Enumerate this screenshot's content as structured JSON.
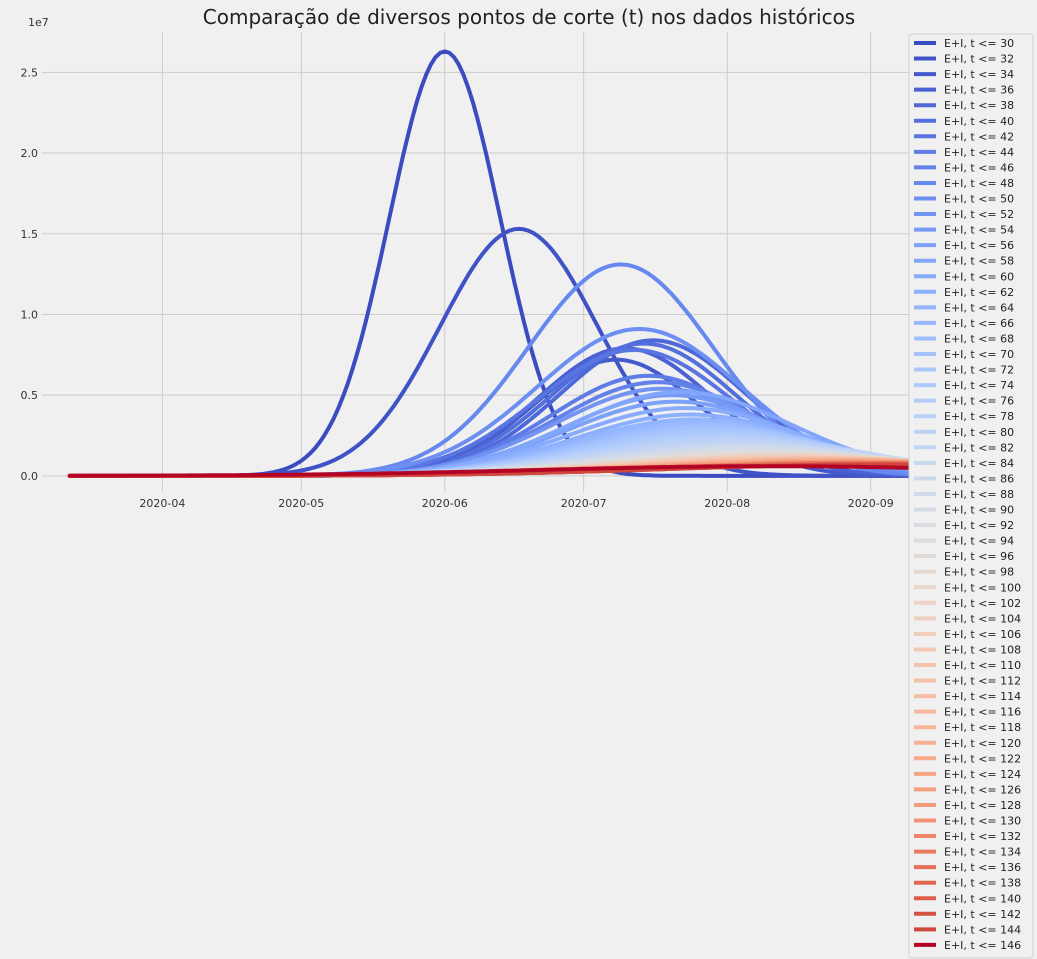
{
  "chart_data": {
    "type": "line",
    "title": "Comparação de diversos pontos de corte (t) nos dados históricos",
    "xlabel": "",
    "ylabel": "",
    "y_offset_label": "1e7",
    "x_range": [
      "2020-03-06",
      "2020-09-30"
    ],
    "ylim": [
      -0.1,
      2.75
    ],
    "y_ticks": [
      0.0,
      0.5,
      1.0,
      1.5,
      2.0,
      2.5
    ],
    "y_tick_labels": [
      "0.0",
      "0.5",
      "1.0",
      "1.5",
      "2.0",
      "2.5"
    ],
    "x_ticks": [
      "2020-04-01",
      "2020-05-01",
      "2020-06-01",
      "2020-07-01",
      "2020-08-01",
      "2020-09-01"
    ],
    "x_tick_labels": [
      "2020-04",
      "2020-05",
      "2020-06",
      "2020-07",
      "2020-08",
      "2020-09"
    ],
    "grid": true,
    "legend_position": "right",
    "start_date": "2020-03-12",
    "end_date": "2020-09-30",
    "series": [
      {
        "name": "E+I, t <= 30",
        "color": "#3b4cc0",
        "peak_date": "2020-06-01",
        "peak": 2.63,
        "sigma": 12
      },
      {
        "name": "E+I, t <= 32",
        "color": "#3f53c6",
        "peak_date": "2020-06-17",
        "peak": 1.53,
        "sigma": 17
      },
      {
        "name": "E+I, t <= 34",
        "color": "#445acc",
        "peak_date": "2020-07-08",
        "peak": 0.72,
        "sigma": 18
      },
      {
        "name": "E+I, t <= 36",
        "color": "#4961d2",
        "peak_date": "2020-07-10",
        "peak": 0.79,
        "sigma": 19
      },
      {
        "name": "E+I, t <= 38",
        "color": "#4e68d8",
        "peak_date": "2020-07-16",
        "peak": 0.84,
        "sigma": 20
      },
      {
        "name": "E+I, t <= 40",
        "color": "#536edd",
        "peak_date": "2020-07-14",
        "peak": 0.82,
        "sigma": 20
      },
      {
        "name": "E+I, t <= 42",
        "color": "#5875e1",
        "peak_date": "2020-07-12",
        "peak": 0.78,
        "sigma": 21
      },
      {
        "name": "E+I, t <= 44",
        "color": "#5d7ce6",
        "peak_date": "2020-07-15",
        "peak": 0.62,
        "sigma": 21
      },
      {
        "name": "E+I, t <= 46",
        "color": "#6282ea",
        "peak_date": "2020-07-17",
        "peak": 0.58,
        "sigma": 22
      },
      {
        "name": "E+I, t <= 48",
        "color": "#6788ee",
        "peak_date": "2020-07-09",
        "peak": 1.31,
        "sigma": 20
      },
      {
        "name": "E+I, t <= 50",
        "color": "#6c8ff1",
        "peak_date": "2020-07-13",
        "peak": 0.91,
        "sigma": 22
      },
      {
        "name": "E+I, t <= 52",
        "color": "#7295f4",
        "peak_date": "2020-07-18",
        "peak": 0.54,
        "sigma": 23
      },
      {
        "name": "E+I, t <= 54",
        "color": "#779af7",
        "peak_date": "2020-07-20",
        "peak": 0.5,
        "sigma": 23
      },
      {
        "name": "E+I, t <= 56",
        "color": "#7da0f9",
        "peak_date": "2020-07-21",
        "peak": 0.46,
        "sigma": 24
      },
      {
        "name": "E+I, t <= 58",
        "color": "#82a6fb",
        "peak_date": "2020-07-22",
        "peak": 0.52,
        "sigma": 24
      },
      {
        "name": "E+I, t <= 60",
        "color": "#88abfd",
        "peak_date": "2020-07-23",
        "peak": 0.42,
        "sigma": 25
      },
      {
        "name": "E+I, t <= 62",
        "color": "#8db0fe",
        "peak_date": "2020-07-24",
        "peak": 0.38,
        "sigma": 25
      },
      {
        "name": "E+I, t <= 64",
        "color": "#93b5fe",
        "peak_date": "2020-07-25",
        "peak": 0.35,
        "sigma": 26
      },
      {
        "name": "E+I, t <= 66",
        "color": "#98b9ff",
        "peak_date": "2020-07-26",
        "peak": 0.33,
        "sigma": 26
      },
      {
        "name": "E+I, t <= 68",
        "color": "#9ebeff",
        "peak_date": "2020-07-27",
        "peak": 0.31,
        "sigma": 27
      },
      {
        "name": "E+I, t <= 70",
        "color": "#a3c2fe",
        "peak_date": "2020-07-28",
        "peak": 0.3,
        "sigma": 27
      },
      {
        "name": "E+I, t <= 72",
        "color": "#a9c6fd",
        "peak_date": "2020-07-29",
        "peak": 0.28,
        "sigma": 28
      },
      {
        "name": "E+I, t <= 74",
        "color": "#aec9fc",
        "peak_date": "2020-07-30",
        "peak": 0.26,
        "sigma": 28
      },
      {
        "name": "E+I, t <= 76",
        "color": "#b3cdfb",
        "peak_date": "2020-07-31",
        "peak": 0.25,
        "sigma": 29
      },
      {
        "name": "E+I, t <= 78",
        "color": "#b9d0f9",
        "peak_date": "2020-08-01",
        "peak": 0.23,
        "sigma": 29
      },
      {
        "name": "E+I, t <= 80",
        "color": "#bed2f6",
        "peak_date": "2020-08-02",
        "peak": 0.22,
        "sigma": 30
      },
      {
        "name": "E+I, t <= 82",
        "color": "#c3d5f4",
        "peak_date": "2020-08-03",
        "peak": 0.2,
        "sigma": 30
      },
      {
        "name": "E+I, t <= 84",
        "color": "#c7d7f0",
        "peak_date": "2020-08-04",
        "peak": 0.19,
        "sigma": 31
      },
      {
        "name": "E+I, t <= 86",
        "color": "#ccd9ed",
        "peak_date": "2020-08-05",
        "peak": 0.18,
        "sigma": 31
      },
      {
        "name": "E+I, t <= 88",
        "color": "#d1dae9",
        "peak_date": "2020-08-06",
        "peak": 0.17,
        "sigma": 32
      },
      {
        "name": "E+I, t <= 90",
        "color": "#d5dbe5",
        "peak_date": "2020-08-07",
        "peak": 0.16,
        "sigma": 32
      },
      {
        "name": "E+I, t <= 92",
        "color": "#d9dce1",
        "peak_date": "2020-08-08",
        "peak": 0.15,
        "sigma": 33
      },
      {
        "name": "E+I, t <= 94",
        "color": "#dddcdc",
        "peak_date": "2020-08-09",
        "peak": 0.14,
        "sigma": 33
      },
      {
        "name": "E+I, t <= 96",
        "color": "#e1dad6",
        "peak_date": "2020-08-10",
        "peak": 0.14,
        "sigma": 34
      },
      {
        "name": "E+I, t <= 98",
        "color": "#e5d8d1",
        "peak_date": "2020-08-11",
        "peak": 0.13,
        "sigma": 34
      },
      {
        "name": "E+I, t <= 100",
        "color": "#e8d6cc",
        "peak_date": "2020-08-12",
        "peak": 0.13,
        "sigma": 35
      },
      {
        "name": "E+I, t <= 102",
        "color": "#ecd3c5",
        "peak_date": "2020-08-13",
        "peak": 0.12,
        "sigma": 35
      },
      {
        "name": "E+I, t <= 104",
        "color": "#eed0c0",
        "peak_date": "2020-08-14",
        "peak": 0.12,
        "sigma": 36
      },
      {
        "name": "E+I, t <= 106",
        "color": "#f1ccb8",
        "peak_date": "2020-08-15",
        "peak": 0.12,
        "sigma": 36
      },
      {
        "name": "E+I, t <= 108",
        "color": "#f2c9b4",
        "peak_date": "2020-08-16",
        "peak": 0.11,
        "sigma": 37
      },
      {
        "name": "E+I, t <= 110",
        "color": "#f4c5ad",
        "peak_date": "2020-08-17",
        "peak": 0.11,
        "sigma": 37
      },
      {
        "name": "E+I, t <= 112",
        "color": "#f5c1a9",
        "peak_date": "2020-08-18",
        "peak": 0.11,
        "sigma": 38
      },
      {
        "name": "E+I, t <= 114",
        "color": "#f6bda2",
        "peak_date": "2020-08-19",
        "peak": 0.1,
        "sigma": 38
      },
      {
        "name": "E+I, t <= 116",
        "color": "#f7b89c",
        "peak_date": "2020-08-20",
        "peak": 0.1,
        "sigma": 39
      },
      {
        "name": "E+I, t <= 118",
        "color": "#f7b497",
        "peak_date": "2020-08-21",
        "peak": 0.1,
        "sigma": 39
      },
      {
        "name": "E+I, t <= 120",
        "color": "#f7af91",
        "peak_date": "2020-08-22",
        "peak": 0.1,
        "sigma": 40
      },
      {
        "name": "E+I, t <= 122",
        "color": "#f7aa8c",
        "peak_date": "2020-08-23",
        "peak": 0.09,
        "sigma": 40
      },
      {
        "name": "E+I, t <= 124",
        "color": "#f6a586",
        "peak_date": "2020-08-24",
        "peak": 0.09,
        "sigma": 41
      },
      {
        "name": "E+I, t <= 126",
        "color": "#f5a081",
        "peak_date": "2020-08-25",
        "peak": 0.09,
        "sigma": 41
      },
      {
        "name": "E+I, t <= 128",
        "color": "#f39b7a",
        "peak_date": "2020-08-26",
        "peak": 0.09,
        "sigma": 42
      },
      {
        "name": "E+I, t <= 130",
        "color": "#f29274",
        "peak_date": "2020-08-27",
        "peak": 0.08,
        "sigma": 42
      },
      {
        "name": "E+I, t <= 132",
        "color": "#ee8468",
        "peak_date": "2020-08-28",
        "peak": 0.08,
        "sigma": 43
      },
      {
        "name": "E+I, t <= 134",
        "color": "#ea7b60",
        "peak_date": "2020-08-29",
        "peak": 0.08,
        "sigma": 43
      },
      {
        "name": "E+I, t <= 136",
        "color": "#e57058",
        "peak_date": "2020-08-30",
        "peak": 0.08,
        "sigma": 44
      },
      {
        "name": "E+I, t <= 138",
        "color": "#e16751",
        "peak_date": "2020-08-31",
        "peak": 0.07,
        "sigma": 44
      },
      {
        "name": "E+I, t <= 140",
        "color": "#dc5d4a",
        "peak_date": "2020-09-01",
        "peak": 0.07,
        "sigma": 45
      },
      {
        "name": "E+I, t <= 142",
        "color": "#d65244",
        "peak_date": "2020-09-02",
        "peak": 0.07,
        "sigma": 45
      },
      {
        "name": "E+I, t <= 144",
        "color": "#d0473d",
        "peak_date": "2020-09-03",
        "peak": 0.07,
        "sigma": 46
      },
      {
        "name": "E+I, t <= 146",
        "color": "#b40426",
        "peak_date": "2020-08-10",
        "peak": 0.06,
        "sigma": 50
      }
    ]
  }
}
